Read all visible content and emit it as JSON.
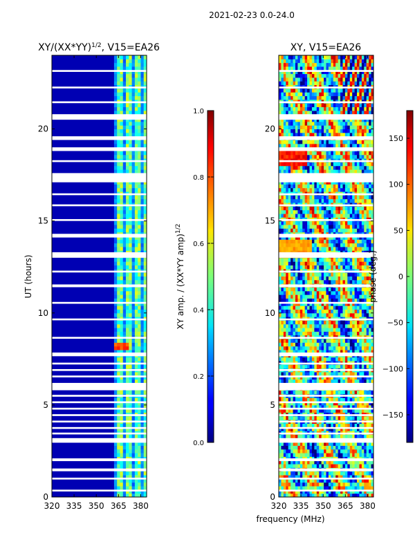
{
  "figure": {
    "suptitle": "2021-02-23 0.0-24.0",
    "shared_xlabel": "frequency (MHz)",
    "shared_ylabel": "UT (hours)"
  },
  "chart_data": [
    {
      "type": "heatmap",
      "title_main": "XY/(XX*YY)",
      "title_sup": "1/2",
      "title_rest": ", V15=EA26",
      "xlim": [
        320,
        384
      ],
      "ylim": [
        0,
        24
      ],
      "xticks": [
        320,
        335,
        350,
        365,
        380
      ],
      "yticks": [
        0,
        5,
        10,
        15,
        20
      ],
      "colormap": "jet",
      "colorbar": {
        "label_main": "XY amp. / (XX*YY amp)",
        "label_sup": "1/2",
        "range": [
          0.0,
          1.0
        ],
        "ticks": [
          0.0,
          0.2,
          0.4,
          0.6,
          0.8,
          1.0
        ],
        "tick_labels": [
          "0.0",
          "0.2",
          "0.4",
          "0.6",
          "0.8",
          "1.0"
        ]
      },
      "notes": "Mostly ~0.0 below 361 MHz; elevated amplitudes 0.3-0.6 between ~361-382 MHz; peak ~0.8 near 8 UT around 362-372 MHz"
    },
    {
      "type": "heatmap",
      "title": "XY, V15=EA26",
      "xlim": [
        320,
        384
      ],
      "ylim": [
        0,
        24
      ],
      "xticks": [
        320,
        335,
        350,
        365,
        380
      ],
      "yticks": [
        0,
        5,
        10,
        15,
        20
      ],
      "colormap": "jet",
      "colorbar": {
        "label": "phase (deg.)",
        "range": [
          -180,
          180
        ],
        "ticks": [
          -150,
          -100,
          -50,
          0,
          50,
          100,
          150
        ],
        "tick_labels": [
          "−150",
          "−100",
          "−50",
          "0",
          "50",
          "100",
          "150"
        ]
      }
    }
  ],
  "flagged_ut_bands": [
    [
      0.3,
      0.4
    ],
    [
      0.95,
      1.05
    ],
    [
      1.4,
      1.55
    ],
    [
      1.95,
      2.1
    ],
    [
      2.95,
      3.2
    ],
    [
      3.4,
      3.5
    ],
    [
      3.7,
      3.8
    ],
    [
      4.05,
      4.15
    ],
    [
      4.4,
      4.5
    ],
    [
      4.75,
      4.85
    ],
    [
      5.1,
      5.2
    ],
    [
      5.45,
      5.55
    ],
    [
      5.8,
      6.2
    ],
    [
      6.5,
      6.6
    ],
    [
      6.85,
      6.95
    ],
    [
      7.2,
      7.3
    ],
    [
      7.65,
      7.85
    ],
    [
      8.6,
      8.7
    ],
    [
      9.6,
      9.7
    ],
    [
      10.5,
      10.6
    ],
    [
      11.4,
      11.55
    ],
    [
      12.2,
      12.3
    ],
    [
      13.0,
      13.3
    ],
    [
      14.1,
      14.3
    ],
    [
      15.0,
      15.1
    ],
    [
      15.8,
      15.9
    ],
    [
      16.4,
      16.5
    ],
    [
      17.1,
      17.6
    ],
    [
      18.2,
      18.3
    ],
    [
      18.8,
      19.0
    ],
    [
      19.4,
      19.6
    ],
    [
      20.5,
      20.8
    ],
    [
      21.4,
      21.5
    ],
    [
      22.2,
      22.3
    ],
    [
      23.1,
      23.2
    ]
  ]
}
